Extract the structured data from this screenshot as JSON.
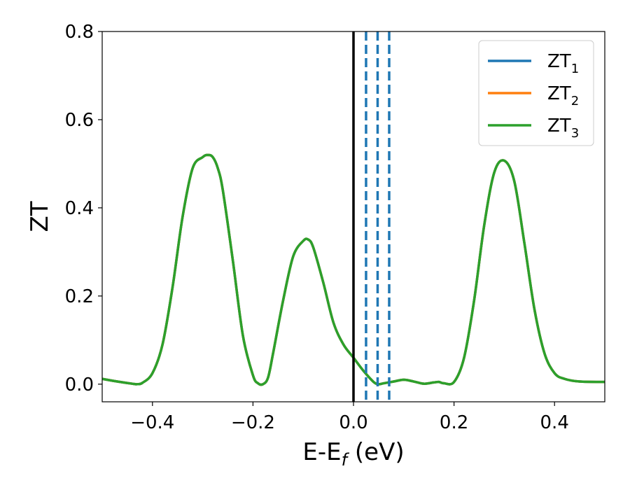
{
  "chart_data": {
    "type": "line",
    "xlabel": "E-E",
    "xlabel_sub": "f",
    "xlabel_unit": " (eV)",
    "ylabel": "ZT",
    "xlim": [
      -0.5,
      0.5
    ],
    "ylim": [
      -0.04,
      0.8
    ],
    "xticks": [
      -0.4,
      -0.2,
      0.0,
      0.2,
      0.4
    ],
    "xtick_labels": [
      "−0.4",
      "−0.2",
      "0.0",
      "0.2",
      "0.4"
    ],
    "yticks": [
      0.0,
      0.2,
      0.4,
      0.6,
      0.8
    ],
    "ytick_labels": [
      "0.0",
      "0.2",
      "0.4",
      "0.6",
      "0.8"
    ],
    "grid": false,
    "legend_position": "top-right",
    "series": [
      {
        "name": "ZT",
        "sub": "1",
        "color": "#1f77b4"
      },
      {
        "name": "ZT",
        "sub": "2",
        "color": "#ff7f0e"
      },
      {
        "name": "ZT",
        "sub": "3",
        "color": "#2ca02c"
      }
    ],
    "curve_x": [
      -0.5,
      -0.47,
      -0.44,
      -0.43,
      -0.42,
      -0.4,
      -0.38,
      -0.36,
      -0.34,
      -0.32,
      -0.3,
      -0.29,
      -0.28,
      -0.27,
      -0.26,
      -0.24,
      -0.22,
      -0.2,
      -0.19,
      -0.18,
      -0.17,
      -0.16,
      -0.14,
      -0.12,
      -0.1,
      -0.09,
      -0.08,
      -0.06,
      -0.04,
      -0.02,
      0.0,
      0.02,
      0.04,
      0.05,
      0.06,
      0.08,
      0.1,
      0.12,
      0.14,
      0.16,
      0.17,
      0.18,
      0.2,
      0.22,
      0.24,
      0.26,
      0.28,
      0.3,
      0.32,
      0.34,
      0.36,
      0.38,
      0.4,
      0.42,
      0.45,
      0.5
    ],
    "curve_y": [
      0.012,
      0.006,
      0.001,
      0.0,
      0.003,
      0.025,
      0.09,
      0.22,
      0.38,
      0.49,
      0.515,
      0.52,
      0.515,
      0.49,
      0.44,
      0.28,
      0.11,
      0.02,
      0.002,
      0.0,
      0.015,
      0.07,
      0.19,
      0.29,
      0.325,
      0.328,
      0.31,
      0.23,
      0.14,
      0.09,
      0.06,
      0.03,
      0.005,
      0.0,
      0.002,
      0.006,
      0.01,
      0.006,
      0.001,
      0.004,
      0.005,
      0.002,
      0.005,
      0.06,
      0.19,
      0.36,
      0.48,
      0.507,
      0.46,
      0.32,
      0.17,
      0.07,
      0.025,
      0.012,
      0.006,
      0.005
    ],
    "vlines": [
      {
        "x": 0.0,
        "style": "solid",
        "color": "#000000"
      },
      {
        "x": 0.025,
        "style": "dashed",
        "color": "#1f77b4"
      },
      {
        "x": 0.048,
        "style": "dashed",
        "color": "#1f77b4"
      },
      {
        "x": 0.071,
        "style": "dashed",
        "color": "#1f77b4"
      }
    ]
  }
}
